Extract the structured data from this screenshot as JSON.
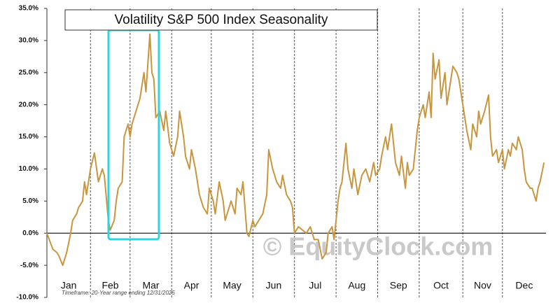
{
  "chart_data": {
    "type": "line",
    "title": "Volatility S&P 500 Index Seasonality",
    "watermark": "© EquityClock.com",
    "footnote": "Timeframe: 20-Year range ending 12/31/2025",
    "color": "#c8963e",
    "xlim": [
      0,
      252
    ],
    "xticks": [
      {
        "value": 0,
        "label": "Jan"
      },
      {
        "value": 22,
        "label": "Feb"
      },
      {
        "value": 42,
        "label": "Mar"
      },
      {
        "value": 63,
        "label": "Apr"
      },
      {
        "value": 83,
        "label": "May"
      },
      {
        "value": 104,
        "label": "Jun"
      },
      {
        "value": 125,
        "label": "Jul"
      },
      {
        "value": 146,
        "label": "Aug"
      },
      {
        "value": 167,
        "label": "Sep"
      },
      {
        "value": 188,
        "label": "Oct"
      },
      {
        "value": 210,
        "label": "Nov"
      },
      {
        "value": 230,
        "label": "Dec"
      }
    ],
    "ylim": [
      -10,
      35
    ],
    "yticks": [
      {
        "value": -10,
        "label": "-10.0%"
      },
      {
        "value": -5,
        "label": "-5.0%"
      },
      {
        "value": 0,
        "label": "0.0%"
      },
      {
        "value": 5,
        "label": "5.0%"
      },
      {
        "value": 10,
        "label": "10.0%"
      },
      {
        "value": 15,
        "label": "15.0%"
      },
      {
        "value": 20,
        "label": "20.0%"
      },
      {
        "value": 25,
        "label": "25.0%"
      },
      {
        "value": 30,
        "label": "30.0%"
      },
      {
        "value": 35,
        "label": "35.0%"
      }
    ],
    "x": [
      0,
      3,
      5,
      6,
      8,
      10,
      12,
      13,
      15,
      16,
      18,
      19,
      20,
      22,
      24,
      26,
      28,
      29,
      31,
      32,
      34,
      35,
      36,
      38,
      39,
      41,
      42,
      43,
      45,
      47,
      49,
      50,
      52,
      53,
      54,
      55,
      57,
      59,
      60,
      62,
      64,
      66,
      67,
      69,
      70,
      72,
      73,
      75,
      76,
      77,
      79,
      81,
      82,
      84,
      85,
      87,
      89,
      90,
      92,
      93,
      95,
      96,
      98,
      99,
      100,
      101,
      102,
      104,
      105,
      107,
      109,
      111,
      112,
      114,
      116,
      118,
      119,
      121,
      123,
      124,
      125,
      127,
      129,
      131,
      133,
      135,
      137,
      139,
      141,
      142,
      144,
      145,
      147,
      148,
      149,
      151,
      152,
      154,
      155,
      157,
      159,
      161,
      163,
      165,
      166,
      168,
      169,
      171,
      172,
      174,
      175,
      176,
      178,
      179,
      181,
      182,
      183,
      185,
      187,
      188,
      190,
      191,
      193,
      194,
      195,
      196,
      198,
      199,
      201,
      202,
      204,
      205,
      207,
      208,
      209,
      211,
      212,
      214,
      215,
      217,
      218,
      219,
      221,
      223,
      224,
      225,
      227,
      228,
      230,
      231,
      233,
      234,
      235,
      237,
      238,
      240,
      241,
      242,
      244,
      245,
      247,
      248,
      249,
      251
    ],
    "values": [
      0,
      -2.5,
      -3,
      -3.5,
      -5,
      -3,
      0,
      2,
      3,
      4,
      5,
      8,
      6,
      10,
      12.5,
      8,
      10,
      9,
      2,
      0.5,
      2,
      5,
      7,
      8,
      15,
      17,
      15,
      17,
      19,
      21,
      25,
      22,
      31,
      25,
      24,
      18,
      19,
      16,
      19,
      14,
      12,
      15,
      19,
      15,
      12,
      10,
      13,
      10,
      8,
      6,
      4,
      3,
      7,
      5,
      3,
      8,
      5,
      2,
      4,
      5,
      3,
      7,
      6,
      8,
      4,
      0,
      -0.5,
      2,
      1,
      2,
      3,
      6,
      13,
      10,
      8,
      7,
      9,
      6,
      5,
      4,
      0,
      1,
      0.5,
      0,
      1,
      -1,
      -1,
      -4,
      -3,
      0,
      1,
      -1,
      5,
      7,
      8,
      14,
      10,
      7,
      10,
      6,
      9,
      10,
      8,
      11,
      9,
      10,
      12,
      15,
      13,
      17,
      14,
      11,
      9,
      12,
      7,
      11,
      9,
      10,
      16,
      18,
      20,
      18,
      22,
      18,
      28,
      24,
      27,
      21,
      25,
      20,
      24,
      26,
      25,
      24,
      22,
      18,
      16,
      13,
      17,
      15,
      19,
      17,
      19,
      21.5,
      15,
      12,
      13,
      11,
      13,
      10,
      13,
      12,
      14,
      13,
      15,
      13,
      10,
      8,
      7,
      7,
      5,
      7,
      8,
      11
    ]
  }
}
